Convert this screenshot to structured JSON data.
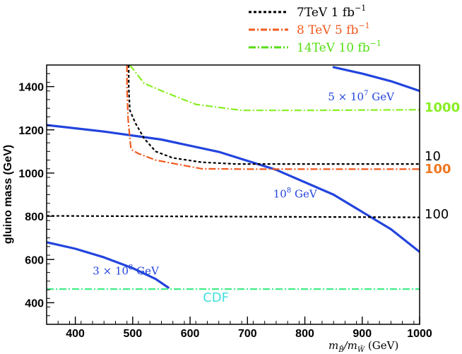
{
  "chart_data": {
    "type": "line",
    "xlabel": "m_B̃/m_W̃ (GeV)",
    "xlabel_main": "m",
    "xlabel_sub1": "B̃",
    "xlabel_slash": "/m",
    "xlabel_sub2": "W̃",
    "xlabel_unit": " (GeV)",
    "ylabel": "gluino mass (GeV)",
    "xlim": [
      350,
      1000
    ],
    "ylim": [
      300,
      1500
    ],
    "xticks": [
      400,
      500,
      600,
      700,
      800,
      900,
      1000
    ],
    "yticks": [
      400,
      600,
      800,
      1000,
      1200,
      1400
    ],
    "legend_position": "top-right",
    "legend": [
      {
        "label": "7TeV 1 fb",
        "sup": "−1",
        "color": "#000000",
        "dash": "4,3",
        "style": "dotted"
      },
      {
        "label": "8 TeV 5 fb",
        "sup": "−1",
        "color": "#f05a1e",
        "dash": "9,3,2,3",
        "style": "dash-dot"
      },
      {
        "label": "14TeV 10 fb",
        "sup": "−1",
        "color": "#55dd11",
        "dash": "10,3,2,3",
        "style": "dash-dot"
      }
    ],
    "series": [
      {
        "id": "lifetime-5e7",
        "color": "#2244dd",
        "style": "solid",
        "x": [
          850,
          900,
          950,
          1000
        ],
        "y": [
          1490,
          1460,
          1425,
          1380
        ]
      },
      {
        "id": "lifetime-1e8",
        "color": "#2244dd",
        "style": "solid",
        "x": [
          350,
          450,
          550,
          650,
          750,
          850,
          950,
          1000
        ],
        "y": [
          1222,
          1192,
          1155,
          1098,
          1015,
          900,
          740,
          635
        ]
      },
      {
        "id": "lifetime-3e8",
        "color": "#2244dd",
        "style": "solid",
        "x": [
          350,
          400,
          450,
          500,
          540,
          562
        ],
        "y": [
          680,
          650,
          610,
          560,
          510,
          470
        ]
      },
      {
        "id": "7tev-contour",
        "color": "#000000",
        "style": "dotted",
        "x": [
          493,
          493,
          495,
          505,
          520,
          540,
          570,
          620,
          680,
          1000
        ],
        "y": [
          1500,
          1400,
          1290,
          1230,
          1160,
          1100,
          1070,
          1050,
          1042,
          1042
        ]
      },
      {
        "id": "8tev-contour",
        "color": "#f05a1e",
        "style": "dash-dot",
        "x": [
          490,
          490,
          492,
          497,
          510,
          540,
          580,
          620,
          700,
          1000
        ],
        "y": [
          1500,
          1400,
          1250,
          1110,
          1090,
          1060,
          1040,
          1020,
          1018,
          1018
        ]
      },
      {
        "id": "14tev-contour",
        "color": "#88ee22",
        "style": "dash-dot",
        "x": [
          495,
          520,
          560,
          610,
          690,
          800,
          1000
        ],
        "y": [
          1500,
          1415,
          1370,
          1318,
          1290,
          1290,
          1293
        ]
      },
      {
        "id": "7tev-level-100",
        "color": "#000000",
        "style": "dotted",
        "x": [
          350,
          1000
        ],
        "y": [
          802,
          795
        ]
      },
      {
        "id": "cdf-bound",
        "color": "#44ee88",
        "style": "dash-dot",
        "x": [
          350,
          1000
        ],
        "y": [
          463,
          463
        ]
      }
    ],
    "annotations": [
      {
        "id": "label-5e7",
        "text": "5 × 10",
        "sup": "7",
        "suffix": " GeV",
        "color": "#2244dd",
        "x": 898,
        "y": 1337
      },
      {
        "id": "label-1e8",
        "text": "10",
        "sup": "8",
        "suffix": " GeV",
        "color": "#2244dd",
        "x": 783,
        "y": 887
      },
      {
        "id": "label-3e8",
        "text": "3 × 10",
        "sup": "8",
        "suffix": " GeV",
        "color": "#2244dd",
        "x": 488,
        "y": 531
      },
      {
        "id": "label-cdf",
        "text": "CDF",
        "color": "#44dddd",
        "x": 645,
        "y": 405
      }
    ],
    "edge_labels": [
      {
        "id": "edge-1000",
        "text": "1000",
        "color": "#88ee22",
        "y": 1285,
        "bold": true
      },
      {
        "id": "edge-10",
        "text": "10",
        "color": "#000000",
        "y": 1058,
        "bold": false
      },
      {
        "id": "edge-100-orange",
        "text": "100",
        "color": "#f07820",
        "y": 1000,
        "bold": true
      },
      {
        "id": "edge-100-black",
        "text": "100",
        "color": "#000000",
        "y": 790,
        "bold": false
      }
    ]
  }
}
